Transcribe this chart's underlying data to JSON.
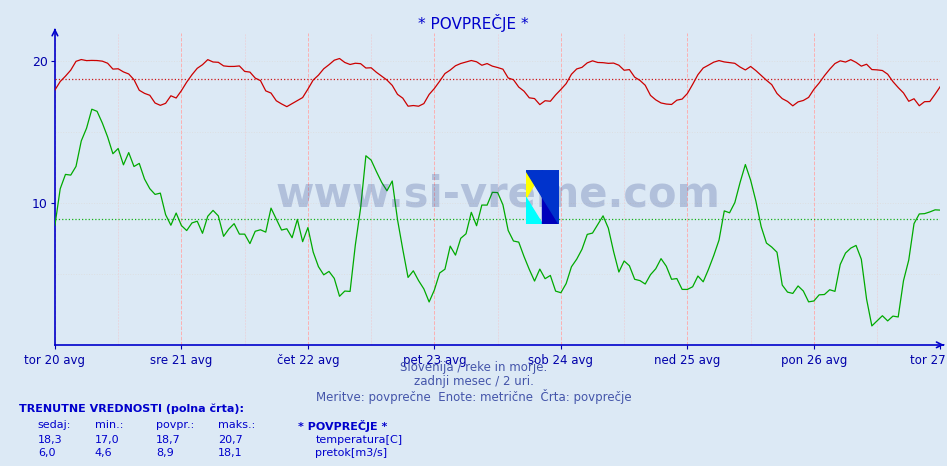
{
  "title": "* POVPREČJE *",
  "bg_color": "#dce9f5",
  "plot_bg_color": "#dce9f5",
  "temp_color": "#cc0000",
  "flow_color": "#00aa00",
  "temp_avg": 18.7,
  "flow_avg": 8.9,
  "temp_min": 17.0,
  "temp_max": 20.7,
  "temp_sedaj": 18.3,
  "flow_min": 4.6,
  "flow_max": 18.1,
  "flow_sedaj": 6.0,
  "flow_povpr": 8.9,
  "temp_povpr": 18.7,
  "ylim": [
    0,
    22
  ],
  "yticks": [
    10,
    20
  ],
  "xlabel_dates": [
    "tor 20 avg",
    "sre 21 avg",
    "čet 22 avg",
    "pet 23 avg",
    "sob 24 avg",
    "ned 25 avg",
    "pon 26 avg",
    "tor 27 avg"
  ],
  "footer_line1": "Slovenija / reke in morje.",
  "footer_line2": "zadnji mesec / 2 uri.",
  "footer_line3": "Meritve: povprečne  Enote: metrične  Črta: povprečje",
  "label_trenutne": "TRENUTNE VREDNOSTI (polna črta):",
  "col_sedaj": "sedaj:",
  "col_min": "min.:",
  "col_povpr": "povpr.:",
  "col_maks": "maks.:",
  "col_title": "* POVPREČJE *",
  "label_temp": "temperatura[C]",
  "label_flow": "pretok[m3/s]",
  "vals_temp": [
    "18,3",
    "17,0",
    "18,7",
    "20,7"
  ],
  "vals_flow": [
    "6,0",
    "4,6",
    "8,9",
    "18,1"
  ],
  "watermark": "www.si-vreme.com",
  "n_points": 169,
  "days": 7,
  "axis_color": "#0000cc",
  "grid_color_v": "#ffaaaa",
  "grid_color_h": "#dddddd",
  "tick_color": "#0000aa",
  "text_color": "#0000aa",
  "footer_color": "#4455aa"
}
